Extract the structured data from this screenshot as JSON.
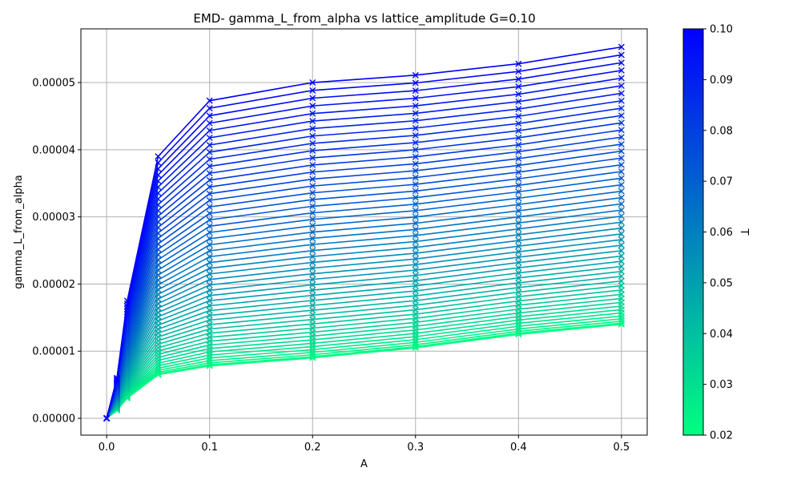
{
  "chart_data": {
    "type": "line",
    "title": "EMD- gamma_L_from_alpha vs lattice_amplitude G=0.10",
    "xlabel": "A",
    "ylabel": "gamma_L_from_alpha",
    "xlim": [
      -0.025,
      0.525
    ],
    "ylim": [
      -2.5e-06,
      5.8e-05
    ],
    "x_ticks": [
      0.0,
      0.1,
      0.2,
      0.3,
      0.4,
      0.5
    ],
    "x_tick_labels": [
      "0.0",
      "0.1",
      "0.2",
      "0.3",
      "0.4",
      "0.5"
    ],
    "y_ticks": [
      0,
      1e-05,
      2e-05,
      3e-05,
      4e-05,
      5e-05
    ],
    "y_tick_labels": [
      "0.00000",
      "0.00001",
      "0.00002",
      "0.00003",
      "0.00004",
      "0.00005"
    ],
    "grid": true,
    "marker": "x",
    "x": [
      0.0,
      0.01,
      0.02,
      0.05,
      0.1,
      0.2,
      0.3,
      0.4,
      0.5
    ],
    "series_param_range": [
      0.02,
      0.1
    ],
    "series_count": 50,
    "series_low": [
      0,
      1.2e-06,
      3e-06,
      6.5e-06,
      7.8e-06,
      9e-06,
      1.05e-05,
      1.25e-05,
      1.4e-05
    ],
    "series_high": [
      0,
      6e-06,
      1.75e-05,
      3.9e-05,
      4.73e-05,
      5e-05,
      5.11e-05,
      5.28e-05,
      5.53e-05
    ],
    "colormap": {
      "name": "winter",
      "low_color": "#00ff80",
      "high_color": "#0000ff"
    },
    "colorbar": {
      "label": "T",
      "range": [
        0.02,
        0.1
      ],
      "ticks": [
        0.02,
        0.03,
        0.04,
        0.05,
        0.06,
        0.07,
        0.08,
        0.09,
        0.1
      ],
      "tick_labels": [
        "0.02",
        "0.03",
        "0.04",
        "0.05",
        "0.06",
        "0.07",
        "0.08",
        "0.09",
        "0.10"
      ]
    }
  }
}
